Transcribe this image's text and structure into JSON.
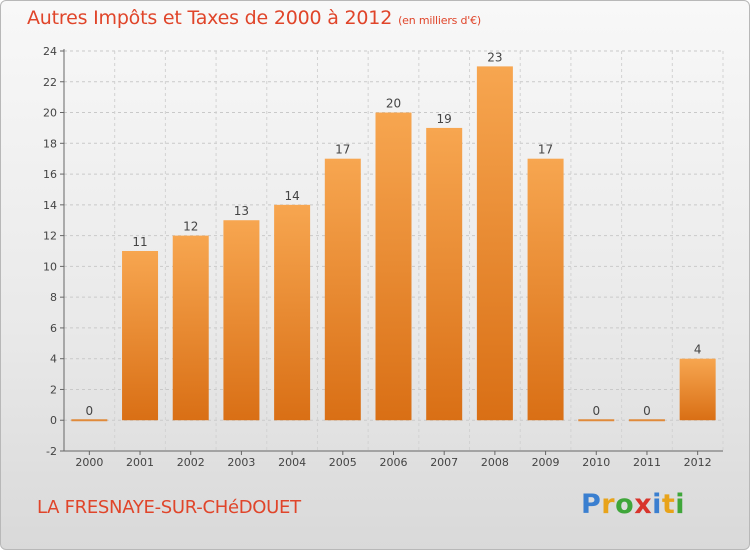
{
  "header": {
    "title": "Autres Impôts et Taxes de 2000 à 2012",
    "unit": "(en milliers d'€)"
  },
  "footer": {
    "commune": "LA FRESNAYE-SUR-CHéDOUET",
    "brand_letters": [
      "P",
      "r",
      "o",
      "x",
      "i",
      "t",
      "i"
    ]
  },
  "colors": {
    "bar_top": "#f7a650",
    "bar_bottom": "#d96f15",
    "title": "#e0452a"
  },
  "chart_data": {
    "type": "bar",
    "title": "Autres Impôts et Taxes de 2000 à 2012",
    "xlabel": "",
    "ylabel": "",
    "categories": [
      "2000",
      "2001",
      "2002",
      "2003",
      "2004",
      "2005",
      "2006",
      "2007",
      "2008",
      "2009",
      "2010",
      "2011",
      "2012"
    ],
    "values": [
      0,
      11,
      12,
      13,
      14,
      17,
      20,
      19,
      23,
      17,
      0,
      0,
      4
    ],
    "ylim": [
      -2,
      24
    ],
    "yticks": [
      -2,
      0,
      2,
      4,
      6,
      8,
      10,
      12,
      14,
      16,
      18,
      20,
      22,
      24
    ],
    "grid": "horizontal dashed",
    "legend": "none"
  }
}
